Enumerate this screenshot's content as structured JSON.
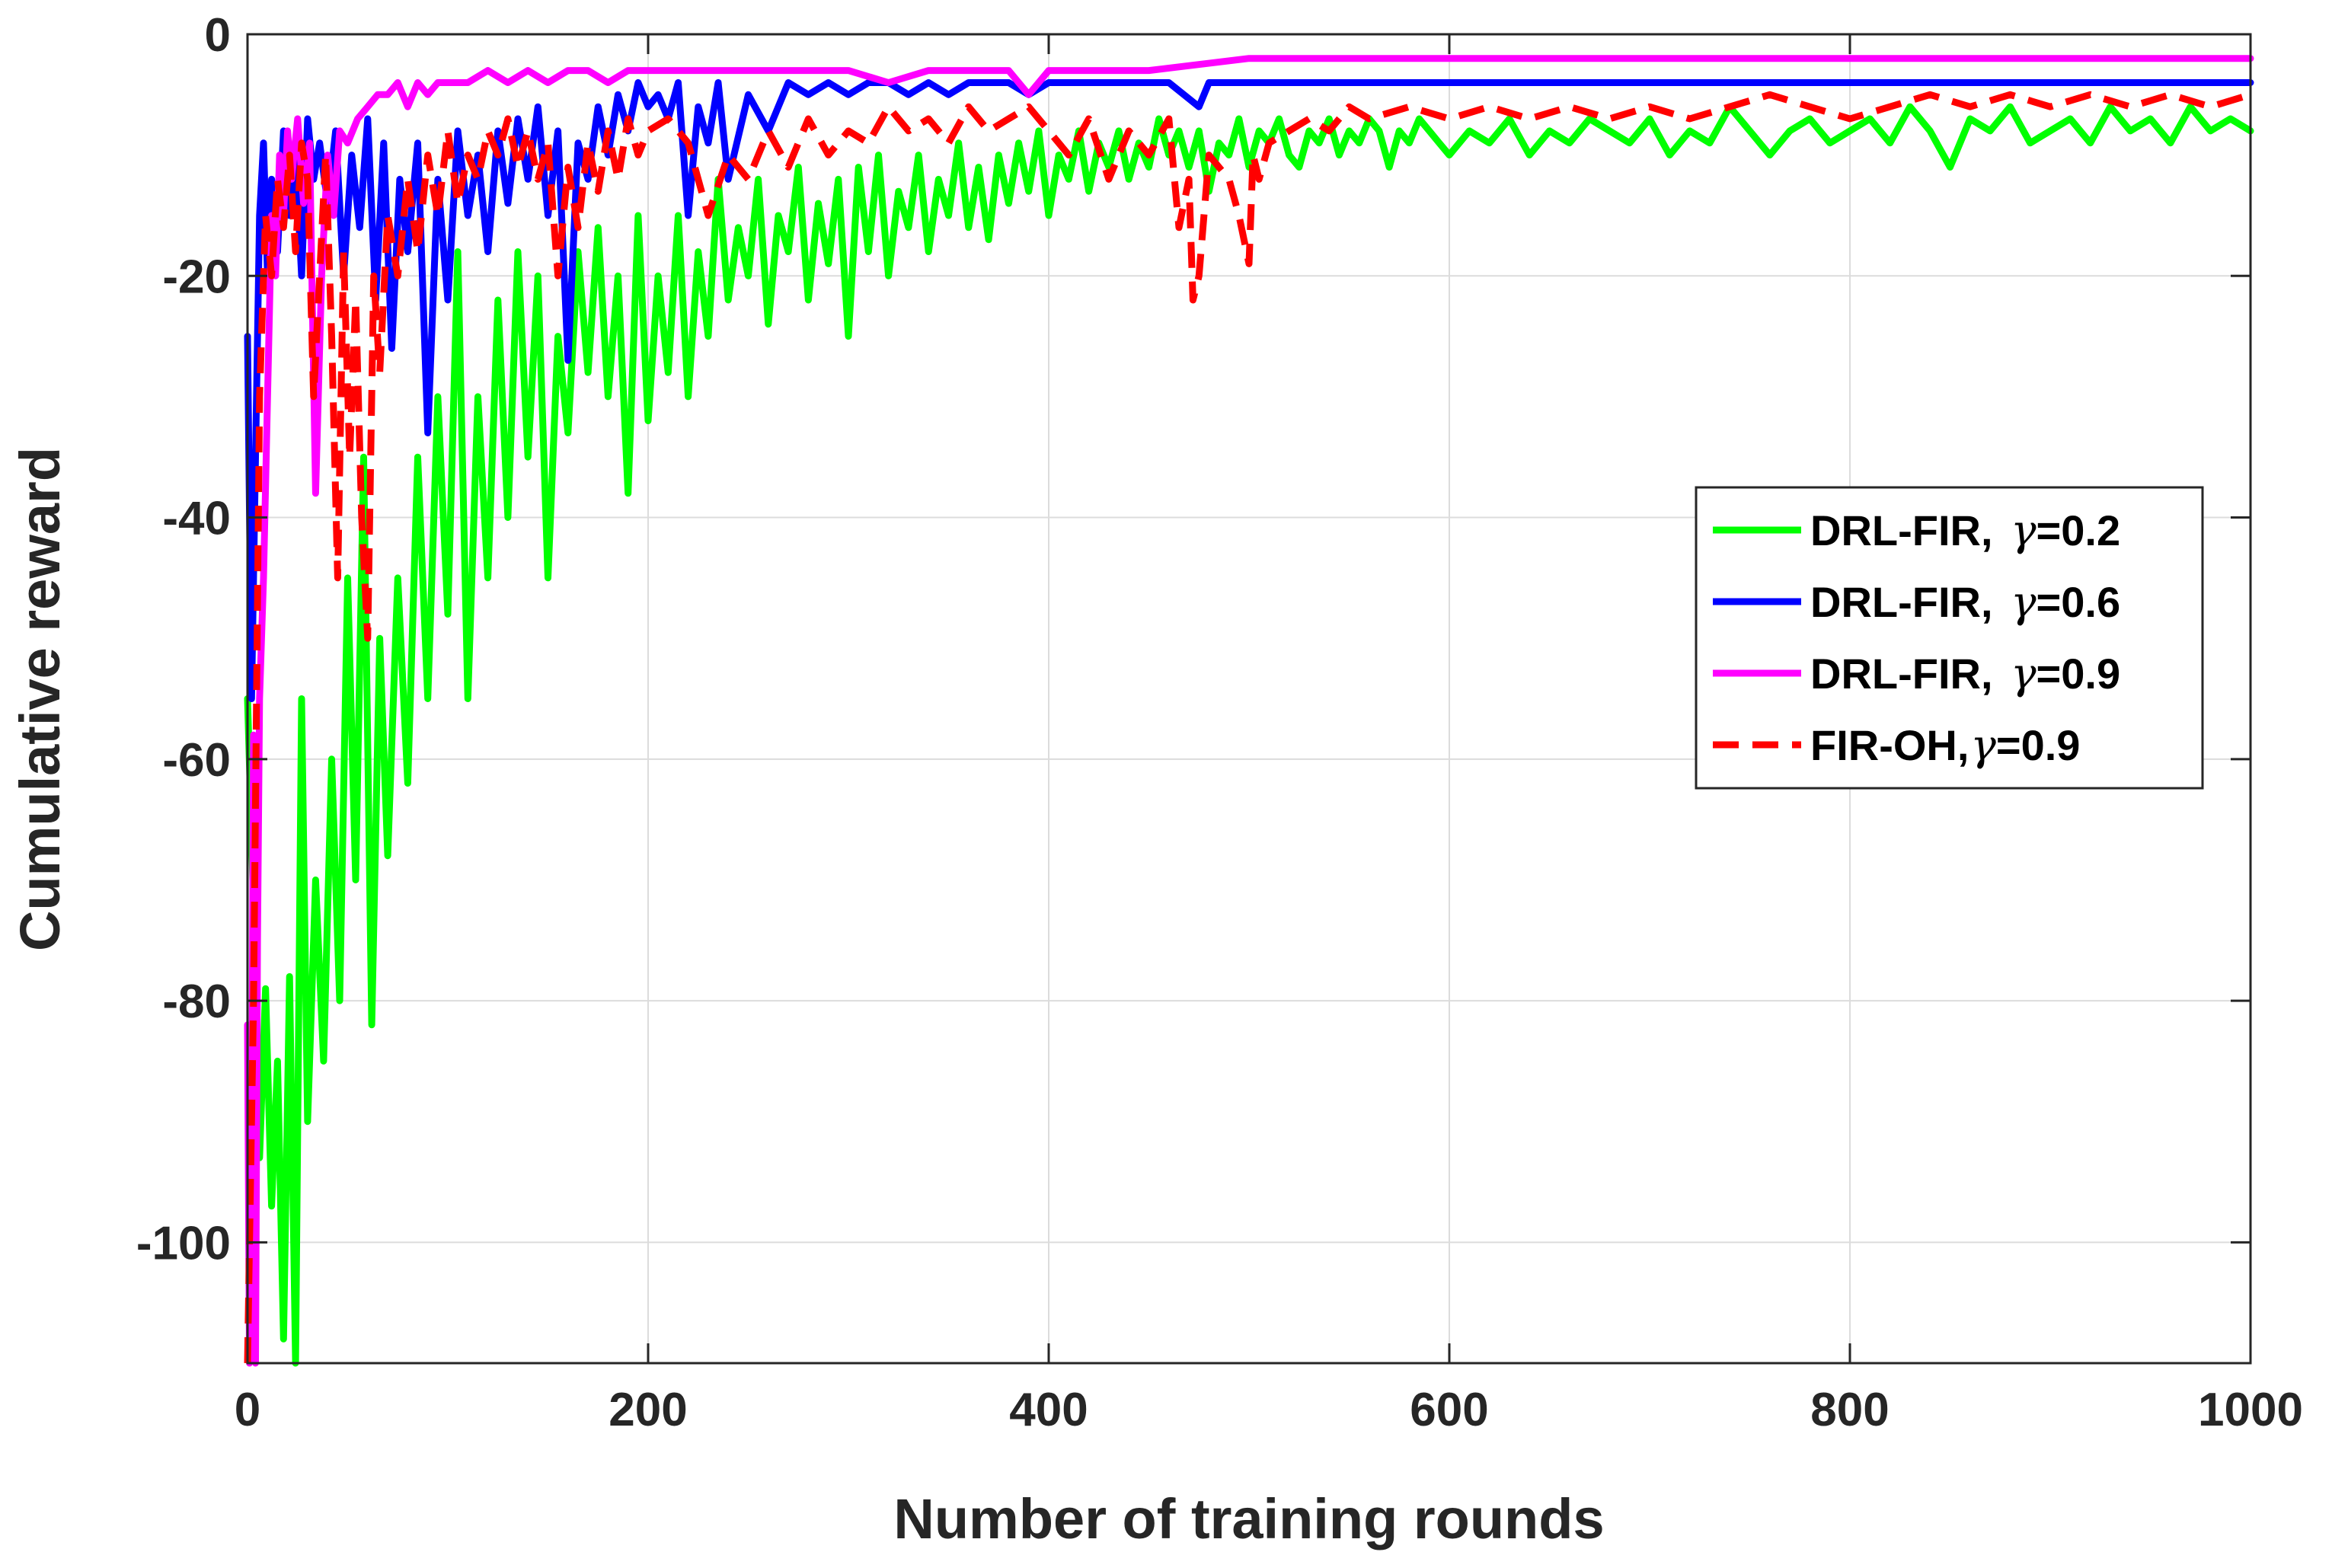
{
  "chart_data": {
    "type": "line",
    "title": "",
    "xlabel": "Number of training rounds",
    "ylabel": "Cumulative reward",
    "xlim": [
      0,
      1000
    ],
    "ylim": [
      -110,
      0
    ],
    "xticks": [
      0,
      200,
      400,
      600,
      800,
      1000
    ],
    "xtick_labels": [
      "0",
      "200",
      "400",
      "600",
      "800",
      "1000"
    ],
    "yticks": [
      0,
      -20,
      -40,
      -60,
      -80,
      -100
    ],
    "ytick_labels": [
      "0",
      "-20",
      "-40",
      "-60",
      "-80",
      "-100"
    ],
    "grid": true,
    "legend_position": "right-middle",
    "series": [
      {
        "name": "DRL-FIR, γ=0.2",
        "label_prefix": "DRL-FIR, ",
        "label_gamma": "γ",
        "label_suffix": "=0.2",
        "color": "#00ff00",
        "dash": "solid",
        "x": [
          0,
          3,
          6,
          9,
          12,
          15,
          18,
          21,
          24,
          27,
          30,
          34,
          38,
          42,
          46,
          50,
          54,
          58,
          62,
          66,
          70,
          75,
          80,
          85,
          90,
          95,
          100,
          105,
          110,
          115,
          120,
          125,
          130,
          135,
          140,
          145,
          150,
          155,
          160,
          165,
          170,
          175,
          180,
          185,
          190,
          195,
          200,
          205,
          210,
          215,
          220,
          225,
          230,
          235,
          240,
          245,
          250,
          255,
          260,
          265,
          270,
          275,
          280,
          285,
          290,
          295,
          300,
          305,
          310,
          315,
          320,
          325,
          330,
          335,
          340,
          345,
          350,
          355,
          360,
          365,
          370,
          375,
          380,
          385,
          390,
          395,
          400,
          405,
          410,
          415,
          420,
          425,
          430,
          435,
          440,
          445,
          450,
          455,
          460,
          465,
          470,
          475,
          480,
          485,
          490,
          495,
          500,
          505,
          510,
          515,
          520,
          525,
          530,
          535,
          540,
          545,
          550,
          555,
          560,
          565,
          570,
          575,
          580,
          585,
          590,
          595,
          600,
          610,
          620,
          630,
          640,
          650,
          660,
          670,
          680,
          690,
          700,
          710,
          720,
          730,
          740,
          750,
          760,
          770,
          780,
          790,
          800,
          810,
          820,
          830,
          840,
          850,
          860,
          870,
          880,
          890,
          900,
          910,
          920,
          930,
          940,
          950,
          960,
          970,
          980,
          990,
          1000
        ],
        "values": [
          -55,
          -72,
          -93,
          -79,
          -97,
          -85,
          -108,
          -78,
          -110,
          -55,
          -90,
          -70,
          -85,
          -60,
          -80,
          -45,
          -70,
          -35,
          -82,
          -50,
          -68,
          -45,
          -62,
          -35,
          -55,
          -30,
          -48,
          -18,
          -55,
          -30,
          -45,
          -22,
          -40,
          -18,
          -35,
          -20,
          -45,
          -25,
          -33,
          -18,
          -28,
          -16,
          -30,
          -20,
          -38,
          -15,
          -32,
          -20,
          -28,
          -15,
          -30,
          -18,
          -25,
          -12,
          -22,
          -16,
          -20,
          -12,
          -24,
          -15,
          -18,
          -11,
          -22,
          -14,
          -19,
          -12,
          -25,
          -11,
          -18,
          -10,
          -20,
          -13,
          -16,
          -10,
          -18,
          -12,
          -15,
          -9,
          -16,
          -11,
          -17,
          -10,
          -14,
          -9,
          -13,
          -8,
          -15,
          -10,
          -12,
          -8,
          -13,
          -9,
          -11,
          -8,
          -12,
          -9,
          -11,
          -7,
          -10,
          -8,
          -11,
          -8,
          -13,
          -9,
          -10,
          -7,
          -11,
          -8,
          -9,
          -7,
          -10,
          -11,
          -8,
          -9,
          -7,
          -10,
          -8,
          -9,
          -7,
          -8,
          -11,
          -8,
          -9,
          -7,
          -8,
          -9,
          -10,
          -8,
          -9,
          -7,
          -10,
          -8,
          -9,
          -7,
          -8,
          -9,
          -7,
          -10,
          -8,
          -9,
          -6,
          -8,
          -10,
          -8,
          -7,
          -9,
          -8,
          -7,
          -9,
          -6,
          -8,
          -11,
          -7,
          -8,
          -6,
          -9,
          -8,
          -7,
          -9,
          -6,
          -8,
          -7,
          -9,
          -6,
          -8,
          -7,
          -8
        ]
      },
      {
        "name": "DRL-FIR, γ=0.6",
        "label_prefix": "DRL-FIR, ",
        "label_gamma": "γ",
        "label_suffix": "=0.6",
        "color": "#0000ff",
        "dash": "solid",
        "x": [
          0,
          2,
          4,
          6,
          8,
          10,
          12,
          15,
          18,
          21,
          24,
          27,
          30,
          33,
          36,
          40,
          44,
          48,
          52,
          56,
          60,
          64,
          68,
          72,
          76,
          80,
          85,
          90,
          95,
          100,
          105,
          110,
          115,
          120,
          125,
          130,
          135,
          140,
          145,
          150,
          155,
          160,
          165,
          170,
          175,
          180,
          185,
          190,
          195,
          200,
          205,
          210,
          215,
          220,
          225,
          230,
          235,
          240,
          250,
          260,
          270,
          280,
          290,
          300,
          310,
          320,
          330,
          340,
          350,
          360,
          370,
          380,
          390,
          400,
          420,
          440,
          460,
          475,
          480,
          500,
          520,
          540,
          560,
          580,
          600,
          650,
          700,
          750,
          800,
          850,
          900,
          950,
          1000
        ],
        "values": [
          -25,
          -55,
          -35,
          -15,
          -9,
          -20,
          -12,
          -18,
          -8,
          -15,
          -10,
          -20,
          -7,
          -12,
          -9,
          -14,
          -8,
          -20,
          -10,
          -16,
          -7,
          -22,
          -9,
          -26,
          -12,
          -18,
          -9,
          -33,
          -12,
          -22,
          -8,
          -15,
          -10,
          -18,
          -8,
          -14,
          -7,
          -12,
          -6,
          -15,
          -8,
          -27,
          -9,
          -12,
          -6,
          -10,
          -5,
          -8,
          -4,
          -6,
          -5,
          -7,
          -4,
          -15,
          -6,
          -9,
          -4,
          -12,
          -5,
          -8,
          -4,
          -5,
          -4,
          -5,
          -4,
          -4,
          -5,
          -4,
          -5,
          -4,
          -4,
          -4,
          -5,
          -4,
          -4,
          -4,
          -4,
          -6,
          -4,
          -4,
          -4,
          -4,
          -4,
          -4,
          -4,
          -4,
          -4,
          -4,
          -4,
          -4,
          -4,
          -4,
          -4
        ]
      },
      {
        "name": "DRL-FIR, γ=0.9",
        "label_prefix": "DRL-FIR, ",
        "label_gamma": "γ",
        "label_suffix": "=0.9",
        "color": "#ff00ff",
        "dash": "solid",
        "x": [
          0,
          1,
          2,
          3,
          4,
          5,
          6,
          8,
          10,
          12,
          14,
          16,
          18,
          20,
          22,
          25,
          28,
          31,
          34,
          37,
          40,
          43,
          46,
          50,
          55,
          60,
          65,
          70,
          75,
          80,
          85,
          90,
          95,
          100,
          110,
          120,
          130,
          140,
          150,
          160,
          170,
          180,
          190,
          200,
          220,
          240,
          260,
          280,
          300,
          320,
          340,
          360,
          380,
          390,
          400,
          450,
          500,
          550,
          600,
          700,
          800,
          900,
          1000
        ],
        "values": [
          -82,
          -110,
          -95,
          -58,
          -110,
          -75,
          -55,
          -45,
          -30,
          -15,
          -20,
          -10,
          -15,
          -8,
          -12,
          -7,
          -14,
          -9,
          -38,
          -20,
          -10,
          -15,
          -8,
          -9,
          -7,
          -6,
          -5,
          -5,
          -4,
          -6,
          -4,
          -5,
          -4,
          -4,
          -4,
          -3,
          -4,
          -3,
          -4,
          -3,
          -3,
          -4,
          -3,
          -3,
          -3,
          -3,
          -3,
          -3,
          -3,
          -4,
          -3,
          -3,
          -3,
          -5,
          -3,
          -3,
          -2,
          -2,
          -2,
          -2,
          -2,
          -2,
          -2
        ]
      },
      {
        "name": "FIR-OH,γ=0.9",
        "label_prefix": "FIR-OH,",
        "label_gamma": "γ",
        "label_suffix": "=0.9",
        "color": "#ff0000",
        "dash": "dashed",
        "x": [
          0,
          3,
          6,
          9,
          12,
          15,
          18,
          21,
          24,
          27,
          30,
          33,
          36,
          39,
          42,
          45,
          48,
          51,
          54,
          57,
          60,
          63,
          66,
          70,
          75,
          80,
          85,
          90,
          95,
          100,
          105,
          110,
          115,
          120,
          125,
          130,
          135,
          140,
          145,
          150,
          155,
          160,
          165,
          170,
          175,
          180,
          185,
          190,
          195,
          200,
          210,
          220,
          230,
          240,
          250,
          260,
          270,
          280,
          290,
          300,
          310,
          320,
          330,
          340,
          350,
          360,
          370,
          380,
          390,
          400,
          410,
          420,
          430,
          440,
          450,
          460,
          465,
          470,
          472,
          475,
          480,
          490,
          495,
          500,
          502,
          505,
          510,
          520,
          530,
          540,
          550,
          560,
          580,
          600,
          620,
          640,
          660,
          680,
          700,
          720,
          740,
          760,
          780,
          800,
          820,
          840,
          860,
          880,
          900,
          920,
          940,
          960,
          980,
          1000
        ],
        "values": [
          -110,
          -80,
          -30,
          -15,
          -20,
          -12,
          -16,
          -10,
          -18,
          -9,
          -12,
          -30,
          -20,
          -10,
          -25,
          -45,
          -18,
          -35,
          -22,
          -40,
          -50,
          -20,
          -28,
          -15,
          -20,
          -12,
          -18,
          -10,
          -15,
          -8,
          -14,
          -10,
          -12,
          -8,
          -10,
          -7,
          -11,
          -8,
          -12,
          -9,
          -20,
          -11,
          -16,
          -9,
          -13,
          -8,
          -12,
          -7,
          -10,
          -8,
          -7,
          -9,
          -15,
          -10,
          -12,
          -8,
          -11,
          -7,
          -10,
          -8,
          -9,
          -6,
          -8,
          -7,
          -9,
          -6,
          -8,
          -7,
          -6,
          -8,
          -10,
          -7,
          -12,
          -8,
          -10,
          -7,
          -16,
          -12,
          -22,
          -20,
          -10,
          -12,
          -15,
          -19,
          -10,
          -12,
          -9,
          -8,
          -7,
          -8,
          -6,
          -7,
          -6,
          -7,
          -6,
          -7,
          -6,
          -7,
          -6,
          -7,
          -6,
          -5,
          -6,
          -7,
          -6,
          -5,
          -6,
          -5,
          -6,
          -5,
          -6,
          -5,
          -6,
          -5
        ]
      }
    ]
  }
}
